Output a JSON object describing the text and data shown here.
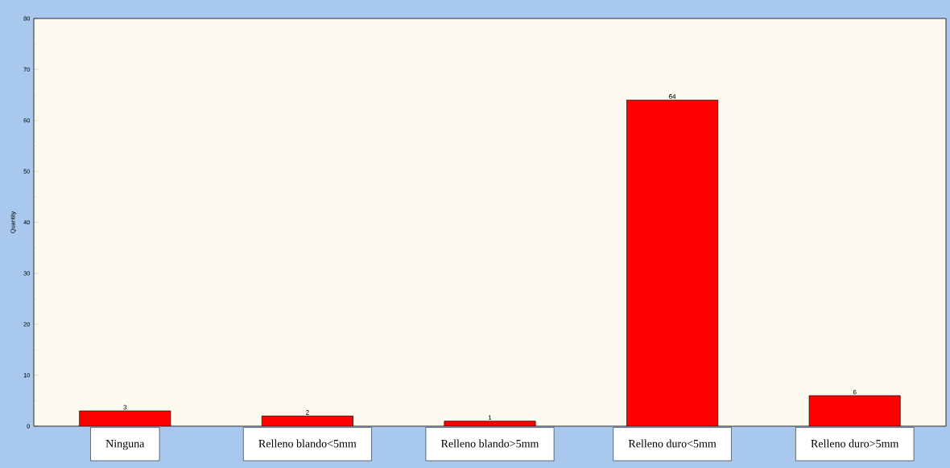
{
  "chart_data": {
    "type": "bar",
    "ylabel": "Quantity",
    "categories": [
      "Ninguna",
      "Relleno blando<5mm",
      "Relleno blando>5mm",
      "Relleno duro<5mm",
      "Relleno duro>5mm"
    ],
    "values": [
      3,
      2,
      1,
      64,
      6
    ],
    "color": "#ff0000",
    "ylim": [
      0,
      80
    ],
    "yticks": [
      0,
      10,
      20,
      30,
      40,
      50,
      60,
      70,
      80
    ],
    "data_labels": true
  }
}
